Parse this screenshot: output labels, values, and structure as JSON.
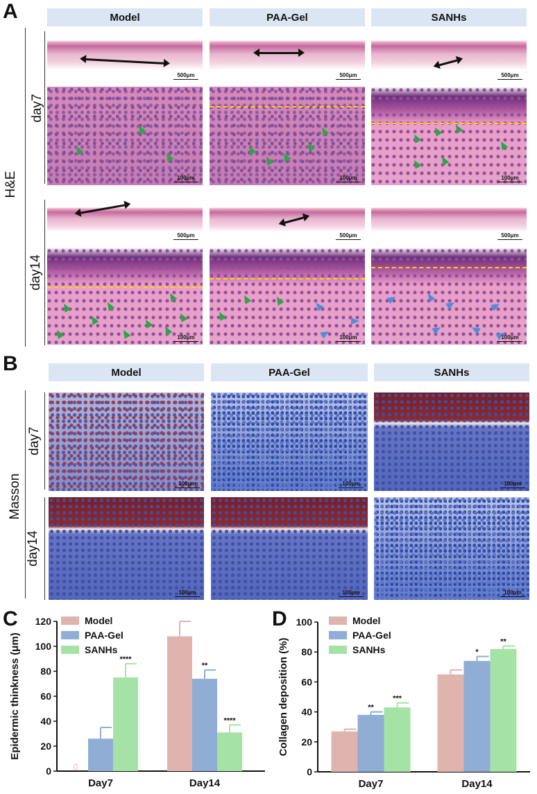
{
  "panels": {
    "a": "A",
    "b": "B",
    "c": "C",
    "d": "D"
  },
  "headers": {
    "model": "Model",
    "paa": "PAA-Gel",
    "sanhs": "SANHs"
  },
  "rows": {
    "he": "H&E",
    "masson": "Masson",
    "day7": "day7",
    "day14": "day14"
  },
  "scales": {
    "low": "500μm",
    "high": "100μm"
  },
  "colors": {
    "model": "#dfb4ae",
    "paa": "#8fadd5",
    "sanhs": "#a5e2a6",
    "green_arrow": "#28a745",
    "blue_arrow": "#4a8fd8",
    "dash": "#ffd400"
  },
  "chart_data": [
    {
      "type": "bar",
      "title": "",
      "xlabel": "",
      "ylabel": "Epidermic thinkness (μm)",
      "ylim": [
        0,
        120
      ],
      "yticks": [
        0,
        20,
        40,
        60,
        80,
        100,
        120
      ],
      "categories": [
        "Day7",
        "Day14"
      ],
      "legend_position": "top-left",
      "series": [
        {
          "name": "Model",
          "values": [
            0,
            108
          ],
          "errors": [
            0,
            12
          ],
          "sig": [
            "",
            ""
          ]
        },
        {
          "name": "PAA-Gel",
          "values": [
            26,
            74
          ],
          "errors": [
            9,
            7
          ],
          "sig": [
            "",
            "**"
          ]
        },
        {
          "name": "SANHs",
          "values": [
            75,
            31
          ],
          "errors": [
            11,
            6
          ],
          "sig": [
            "****",
            "****"
          ]
        }
      ],
      "zero_marker": "0"
    },
    {
      "type": "bar",
      "title": "",
      "xlabel": "",
      "ylabel": "Collagen deposition (%)",
      "ylim": [
        0,
        100
      ],
      "yticks": [
        0,
        20,
        40,
        60,
        80,
        100
      ],
      "categories": [
        "Day7",
        "Day14"
      ],
      "legend_position": "top-left",
      "series": [
        {
          "name": "Model",
          "values": [
            27,
            65
          ],
          "errors": [
            1.5,
            3
          ],
          "sig": [
            "",
            ""
          ]
        },
        {
          "name": "PAA-Gel",
          "values": [
            38,
            74
          ],
          "errors": [
            2,
            3
          ],
          "sig": [
            "**",
            "*"
          ]
        },
        {
          "name": "SANHs",
          "values": [
            43,
            82
          ],
          "errors": [
            3,
            2
          ],
          "sig": [
            "***",
            "**"
          ]
        }
      ]
    }
  ]
}
